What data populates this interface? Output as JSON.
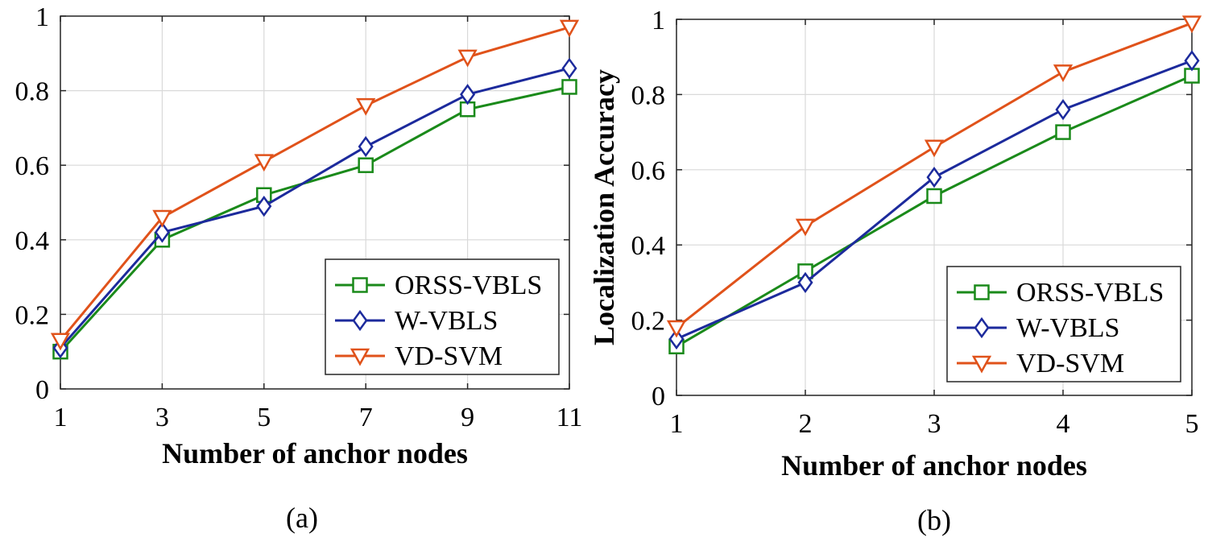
{
  "chart_data": [
    {
      "type": "line",
      "caption": "(a)",
      "xlabel": "Number of anchor nodes",
      "ylabel": "",
      "x": [
        1,
        3,
        5,
        7,
        9,
        11
      ],
      "xticks": [
        "1",
        "3",
        "5",
        "7",
        "9",
        "11"
      ],
      "ylim": [
        0,
        1
      ],
      "yticks": [
        "0",
        "0.2",
        "0.4",
        "0.6",
        "0.8",
        "1"
      ],
      "grid": true,
      "legend_position": "bottom-right",
      "series": [
        {
          "name": "ORSS-VBLS",
          "color": "#1a8a1a",
          "marker": "square",
          "values": [
            0.1,
            0.4,
            0.52,
            0.6,
            0.75,
            0.81
          ]
        },
        {
          "name": "W-VBLS",
          "color": "#1c2a9c",
          "marker": "diamond",
          "values": [
            0.11,
            0.42,
            0.49,
            0.65,
            0.79,
            0.86
          ]
        },
        {
          "name": "VD-SVM",
          "color": "#e0521a",
          "marker": "triangle-down",
          "values": [
            0.13,
            0.46,
            0.61,
            0.76,
            0.89,
            0.97
          ]
        }
      ]
    },
    {
      "type": "line",
      "caption": "(b)",
      "xlabel": "Number of anchor nodes",
      "ylabel": "Localization Accuracy",
      "x": [
        1,
        2,
        3,
        4,
        5
      ],
      "xticks": [
        "1",
        "2",
        "3",
        "4",
        "5"
      ],
      "ylim": [
        0,
        1
      ],
      "yticks": [
        "0",
        "0.2",
        "0.4",
        "0.6",
        "0.8",
        "1"
      ],
      "grid": true,
      "legend_position": "bottom-right",
      "series": [
        {
          "name": "ORSS-VBLS",
          "color": "#1a8a1a",
          "marker": "square",
          "values": [
            0.13,
            0.33,
            0.53,
            0.7,
            0.85
          ]
        },
        {
          "name": "W-VBLS",
          "color": "#1c2a9c",
          "marker": "diamond",
          "values": [
            0.15,
            0.3,
            0.58,
            0.76,
            0.89
          ]
        },
        {
          "name": "VD-SVM",
          "color": "#e0521a",
          "marker": "triangle-down",
          "values": [
            0.18,
            0.45,
            0.66,
            0.86,
            0.99
          ]
        }
      ]
    }
  ]
}
